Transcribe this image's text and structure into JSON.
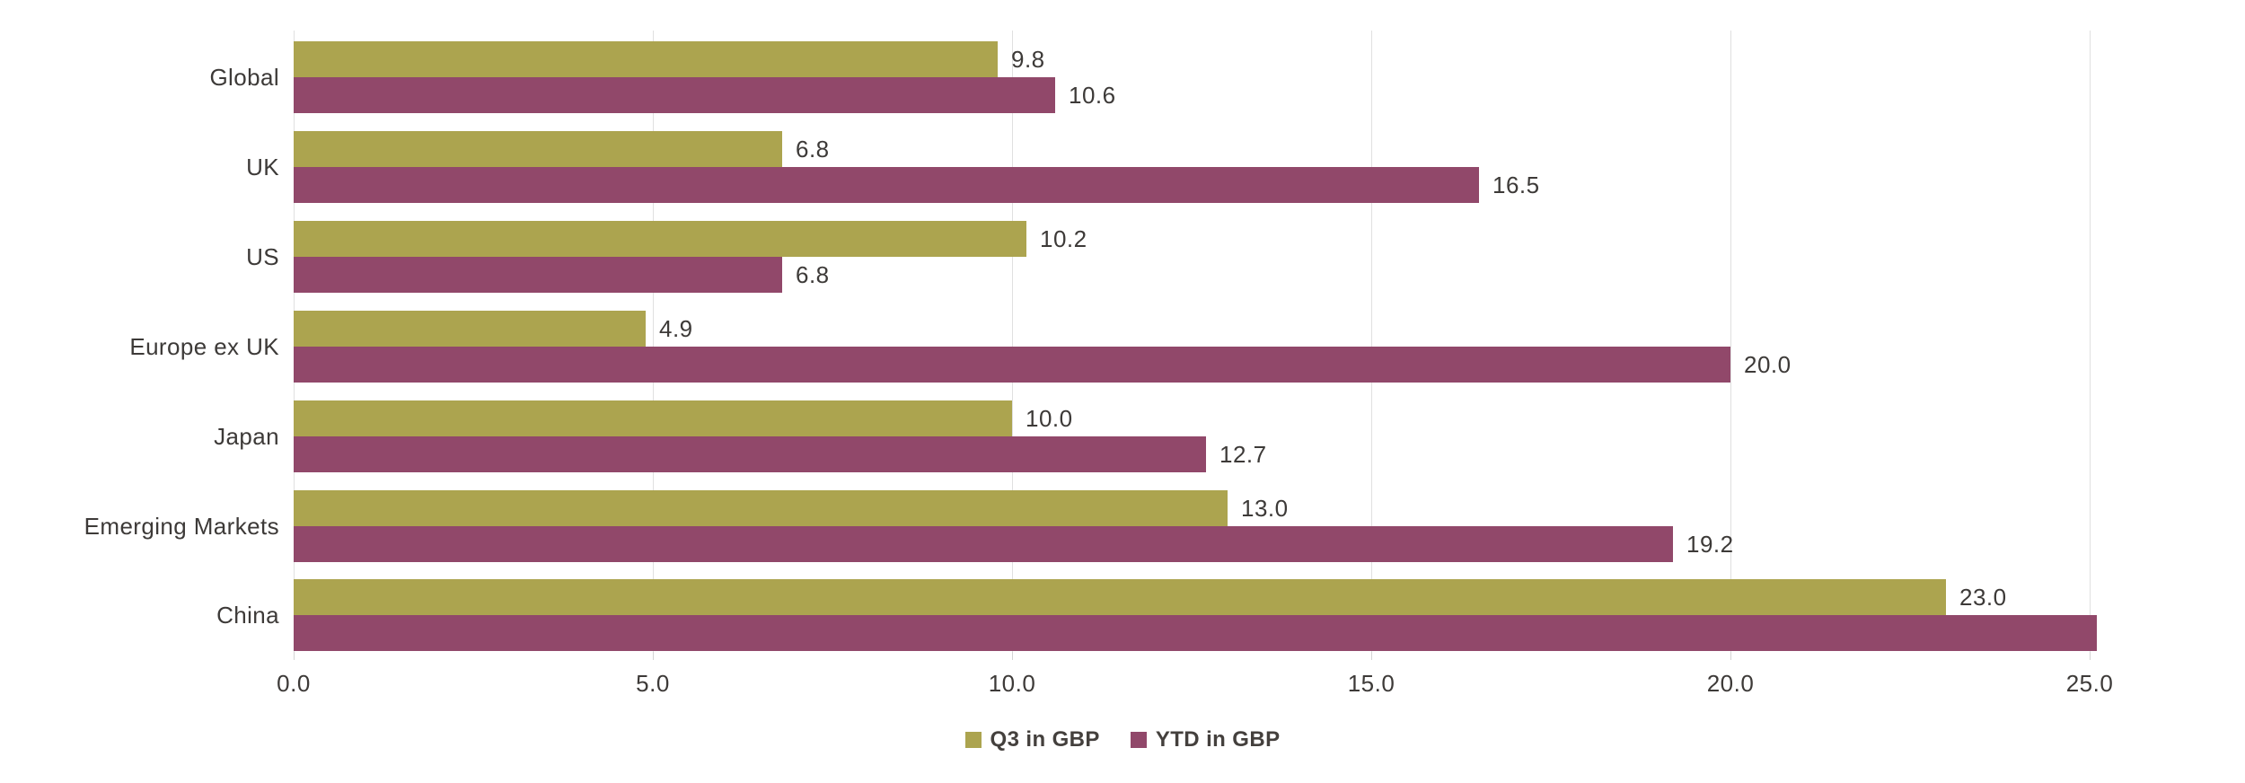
{
  "chart_data": {
    "type": "bar",
    "orientation": "horizontal",
    "title": "",
    "categories": [
      "Global",
      "UK",
      "US",
      "Europe ex UK",
      "Japan",
      "Emerging Markets",
      "China"
    ],
    "series": [
      {
        "name": "Q3 in GBP",
        "color": "#aca44f",
        "values": [
          9.8,
          6.8,
          10.2,
          4.9,
          10.0,
          13.0,
          23.0
        ],
        "labels": [
          "9.8",
          "6.8",
          "10.2",
          "4.9",
          "10.0",
          "13.0",
          "23.0"
        ]
      },
      {
        "name": "YTD in GBP",
        "color": "#91486a",
        "values": [
          10.6,
          16.5,
          6.8,
          20.0,
          12.7,
          19.2,
          25.1
        ],
        "labels": [
          "10.6",
          "16.5",
          "6.8",
          "20.0",
          "12.7",
          "19.2",
          ""
        ]
      }
    ],
    "xlim": [
      0,
      25
    ],
    "x_ticks": [
      {
        "value": 0,
        "label": "0.0"
      },
      {
        "value": 5,
        "label": "5.0"
      },
      {
        "value": 10,
        "label": "10.0"
      },
      {
        "value": 15,
        "label": "15.0"
      },
      {
        "value": 20,
        "label": "20.0"
      },
      {
        "value": 25,
        "label": "25.0"
      }
    ],
    "grid": true,
    "value_labels": true,
    "legend_position": "bottom-center"
  },
  "colors": {
    "background": "#ffffff",
    "gridline": "#e0e0e0",
    "axis_text": "#3d3a38",
    "legend_text": "#44403d"
  }
}
